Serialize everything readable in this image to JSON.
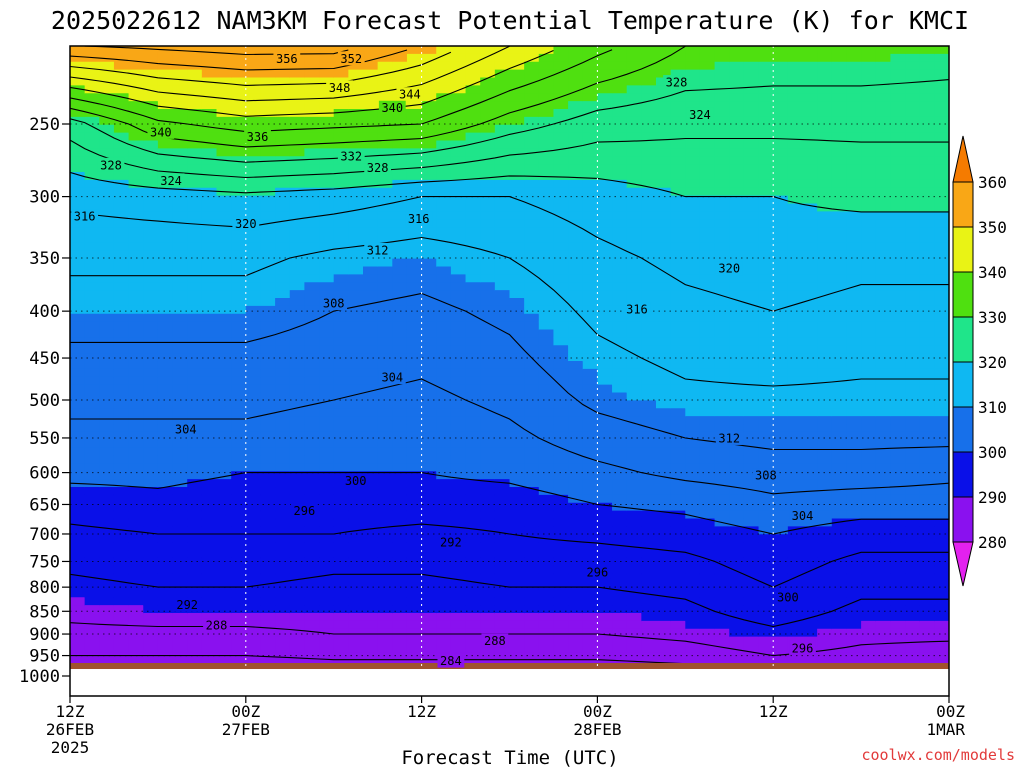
{
  "title": "2025022612 NAM3KM Forecast Potential Temperature (K) for KMCI",
  "credit": "coolwx.com/models",
  "chart_data": {
    "type": "heatmap",
    "title": "2025022612 NAM3KM Forecast Potential Temperature (K) for KMCI",
    "xlabel": "Forecast Time (UTC)",
    "ylabel": "",
    "x_ticks": [
      {
        "hour": 0,
        "l1": "12Z",
        "l2": "26FEB",
        "l3": "2025"
      },
      {
        "hour": 12,
        "l1": "00Z",
        "l2": "27FEB",
        "l3": ""
      },
      {
        "hour": 24,
        "l1": "12Z",
        "l2": "",
        "l3": ""
      },
      {
        "hour": 36,
        "l1": "00Z",
        "l2": "28FEB",
        "l3": ""
      },
      {
        "hour": 48,
        "l1": "12Z",
        "l2": "",
        "l3": ""
      },
      {
        "hour": 60,
        "l1": "00Z",
        "l2": "1MAR",
        "l3": ""
      }
    ],
    "xlim": [
      0,
      60
    ],
    "y_ticks": [
      250,
      300,
      350,
      400,
      450,
      500,
      550,
      600,
      650,
      700,
      750,
      800,
      850,
      900,
      950,
      1000
    ],
    "ylim": [
      200,
      1000
    ],
    "y_log": true,
    "grid": true,
    "colorbar": {
      "levels": [
        280,
        290,
        300,
        310,
        320,
        330,
        340,
        350,
        360
      ],
      "labels": [
        "280",
        "290",
        "300",
        "310",
        "320",
        "330",
        "340",
        "350",
        "360"
      ],
      "colors": [
        "#e321ef",
        "#8a11ef",
        "#0a10e8",
        "#1770ea",
        "#0fb8f2",
        "#1fe58a",
        "#4fe010",
        "#e9f315",
        "#f9a716",
        "#f57b00"
      ]
    },
    "profiles": {
      "times": [
        0,
        6,
        12,
        18,
        24,
        30,
        36,
        42,
        48,
        54,
        60
      ],
      "pressures": [
        1000,
        950,
        900,
        850,
        800,
        750,
        700,
        650,
        600,
        550,
        500,
        450,
        400,
        350,
        300,
        250,
        200
      ],
      "theta": [
        [
          279,
          284,
          287,
          289,
          291,
          293,
          295,
          298,
          301,
          303,
          305,
          307,
          310,
          313,
          317,
          326,
          360
        ],
        [
          279,
          284,
          287,
          290,
          292,
          294,
          296,
          299,
          301,
          303,
          305,
          307,
          310,
          313,
          318,
          335,
          360
        ],
        [
          279,
          284,
          287,
          290,
          292,
          294,
          296,
          298,
          300,
          303,
          305,
          307,
          310,
          313,
          319,
          338,
          361
        ],
        [
          280,
          285,
          288,
          290,
          291,
          293,
          296,
          298,
          300,
          302,
          304,
          306,
          308,
          311,
          318,
          337,
          361
        ],
        [
          280,
          285,
          288,
          290,
          291,
          293,
          295,
          298,
          300,
          301,
          303,
          305,
          307,
          310,
          316,
          336,
          354
        ],
        [
          280,
          285,
          288,
          290,
          292,
          294,
          296,
          298,
          301,
          303,
          305,
          307,
          309,
          312,
          316,
          330,
          346
        ],
        [
          280,
          285,
          288,
          290,
          292,
          294,
          297,
          300,
          303,
          306,
          309,
          311,
          313,
          315,
          318,
          326,
          339
        ],
        [
          281,
          286,
          289,
          291,
          293,
          295,
          298,
          301,
          305,
          308,
          311,
          313,
          315,
          317,
          320,
          325,
          333
        ],
        [
          285,
          288,
          291,
          294,
          296,
          298,
          300,
          303,
          306,
          309,
          311,
          314,
          316,
          318,
          320,
          325,
          332
        ],
        [
          285,
          287,
          289,
          291,
          293,
          295,
          298,
          302,
          306,
          309,
          311,
          313,
          315,
          317,
          321,
          325,
          332
        ],
        [
          282,
          286,
          289,
          291,
          293,
          295,
          298,
          302,
          305,
          309,
          311,
          313,
          315,
          317,
          321,
          325,
          331
        ]
      ]
    },
    "contour_labels": [
      {
        "t": 14.8,
        "p": 212,
        "v": "356"
      },
      {
        "t": 19.2,
        "p": 212,
        "v": "352"
      },
      {
        "t": 18.4,
        "p": 228,
        "v": "348"
      },
      {
        "t": 23.2,
        "p": 232,
        "v": "344"
      },
      {
        "t": 22.0,
        "p": 240,
        "v": "340"
      },
      {
        "t": 6.2,
        "p": 255,
        "v": "340"
      },
      {
        "t": 12.8,
        "p": 258,
        "v": "336"
      },
      {
        "t": 19.2,
        "p": 271,
        "v": "332"
      },
      {
        "t": 21.0,
        "p": 279,
        "v": "328"
      },
      {
        "t": 2.8,
        "p": 277,
        "v": "328"
      },
      {
        "t": 6.9,
        "p": 288,
        "v": "324"
      },
      {
        "t": 43.0,
        "p": 244,
        "v": "324"
      },
      {
        "t": 41.4,
        "p": 225,
        "v": "328"
      },
      {
        "t": 1.0,
        "p": 315,
        "v": "316"
      },
      {
        "t": 12.0,
        "p": 321,
        "v": "320"
      },
      {
        "t": 23.8,
        "p": 317,
        "v": "316"
      },
      {
        "t": 21.0,
        "p": 343,
        "v": "312"
      },
      {
        "t": 18.0,
        "p": 392,
        "v": "308"
      },
      {
        "t": 22.0,
        "p": 472,
        "v": "304"
      },
      {
        "t": 38.7,
        "p": 398,
        "v": "316"
      },
      {
        "t": 45.0,
        "p": 359,
        "v": "320"
      },
      {
        "t": 7.9,
        "p": 538,
        "v": "304"
      },
      {
        "t": 45.0,
        "p": 550,
        "v": "312"
      },
      {
        "t": 47.5,
        "p": 604,
        "v": "308"
      },
      {
        "t": 50.0,
        "p": 668,
        "v": "304"
      },
      {
        "t": 19.5,
        "p": 612,
        "v": "300"
      },
      {
        "t": 16.0,
        "p": 660,
        "v": "296"
      },
      {
        "t": 26.0,
        "p": 714,
        "v": "292"
      },
      {
        "t": 36.0,
        "p": 770,
        "v": "296"
      },
      {
        "t": 49.0,
        "p": 820,
        "v": "300"
      },
      {
        "t": 8.0,
        "p": 836,
        "v": "292"
      },
      {
        "t": 10.0,
        "p": 880,
        "v": "288"
      },
      {
        "t": 29.0,
        "p": 915,
        "v": "288"
      },
      {
        "t": 26.0,
        "p": 962,
        "v": "284"
      },
      {
        "t": 50.0,
        "p": 932,
        "v": "296"
      }
    ]
  }
}
